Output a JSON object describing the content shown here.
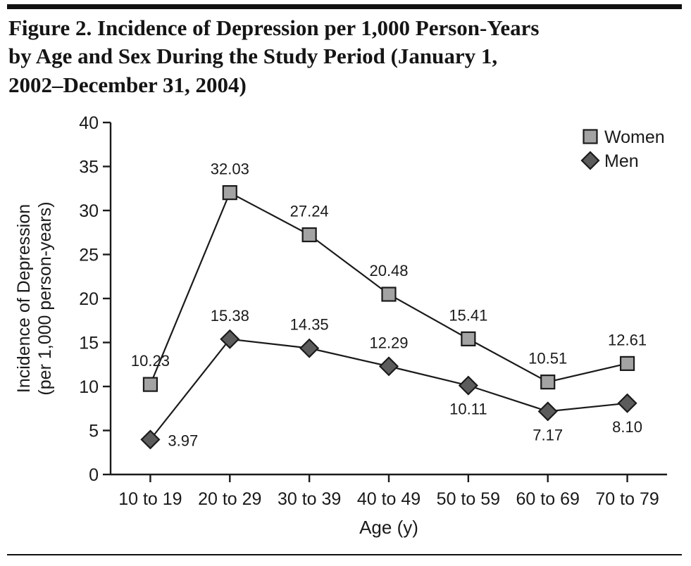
{
  "figure": {
    "title_lines": [
      "Figure 2. Incidence of Depression per 1,000 Person-Years",
      "by Age and Sex During the Study Period (January 1,",
      "2002–December 31, 2004)"
    ]
  },
  "chart_data": {
    "type": "line",
    "categories": [
      "10 to 19",
      "20 to 29",
      "30 to 39",
      "40 to 49",
      "50 to 59",
      "60 to 69",
      "70 to 79"
    ],
    "series": [
      {
        "name": "Women",
        "marker": "square",
        "color": "#a3a3a3",
        "values": [
          10.23,
          32.03,
          27.24,
          20.48,
          15.41,
          10.51,
          12.61
        ],
        "labels": [
          "10.23",
          "32.03",
          "27.24",
          "20.48",
          "15.41",
          "10.51",
          "12.61"
        ],
        "label_positions": [
          "above",
          "above",
          "above",
          "above",
          "above",
          "above",
          "above"
        ]
      },
      {
        "name": "Men",
        "marker": "diamond",
        "color": "#5c5c5c",
        "values": [
          3.97,
          15.38,
          14.35,
          12.29,
          10.11,
          7.17,
          8.1
        ],
        "labels": [
          "3.97",
          "15.38",
          "14.35",
          "12.29",
          "10.11",
          "7.17",
          "8.10"
        ],
        "label_positions": [
          "right",
          "above",
          "above",
          "above",
          "below",
          "below",
          "below"
        ]
      }
    ],
    "xlabel": "Age (y)",
    "ylabel_line1": "Incidence of Depression",
    "ylabel_line2": "(per 1,000 person-years)",
    "ylim": [
      0,
      40
    ],
    "yticks": [
      0,
      5,
      10,
      15,
      20,
      25,
      30,
      35,
      40
    ],
    "grid": false,
    "legend_position": "top-right",
    "line_color": "#1a1a1a",
    "axis_color": "#1a1a1a",
    "text_color": "#1a1a1a"
  }
}
